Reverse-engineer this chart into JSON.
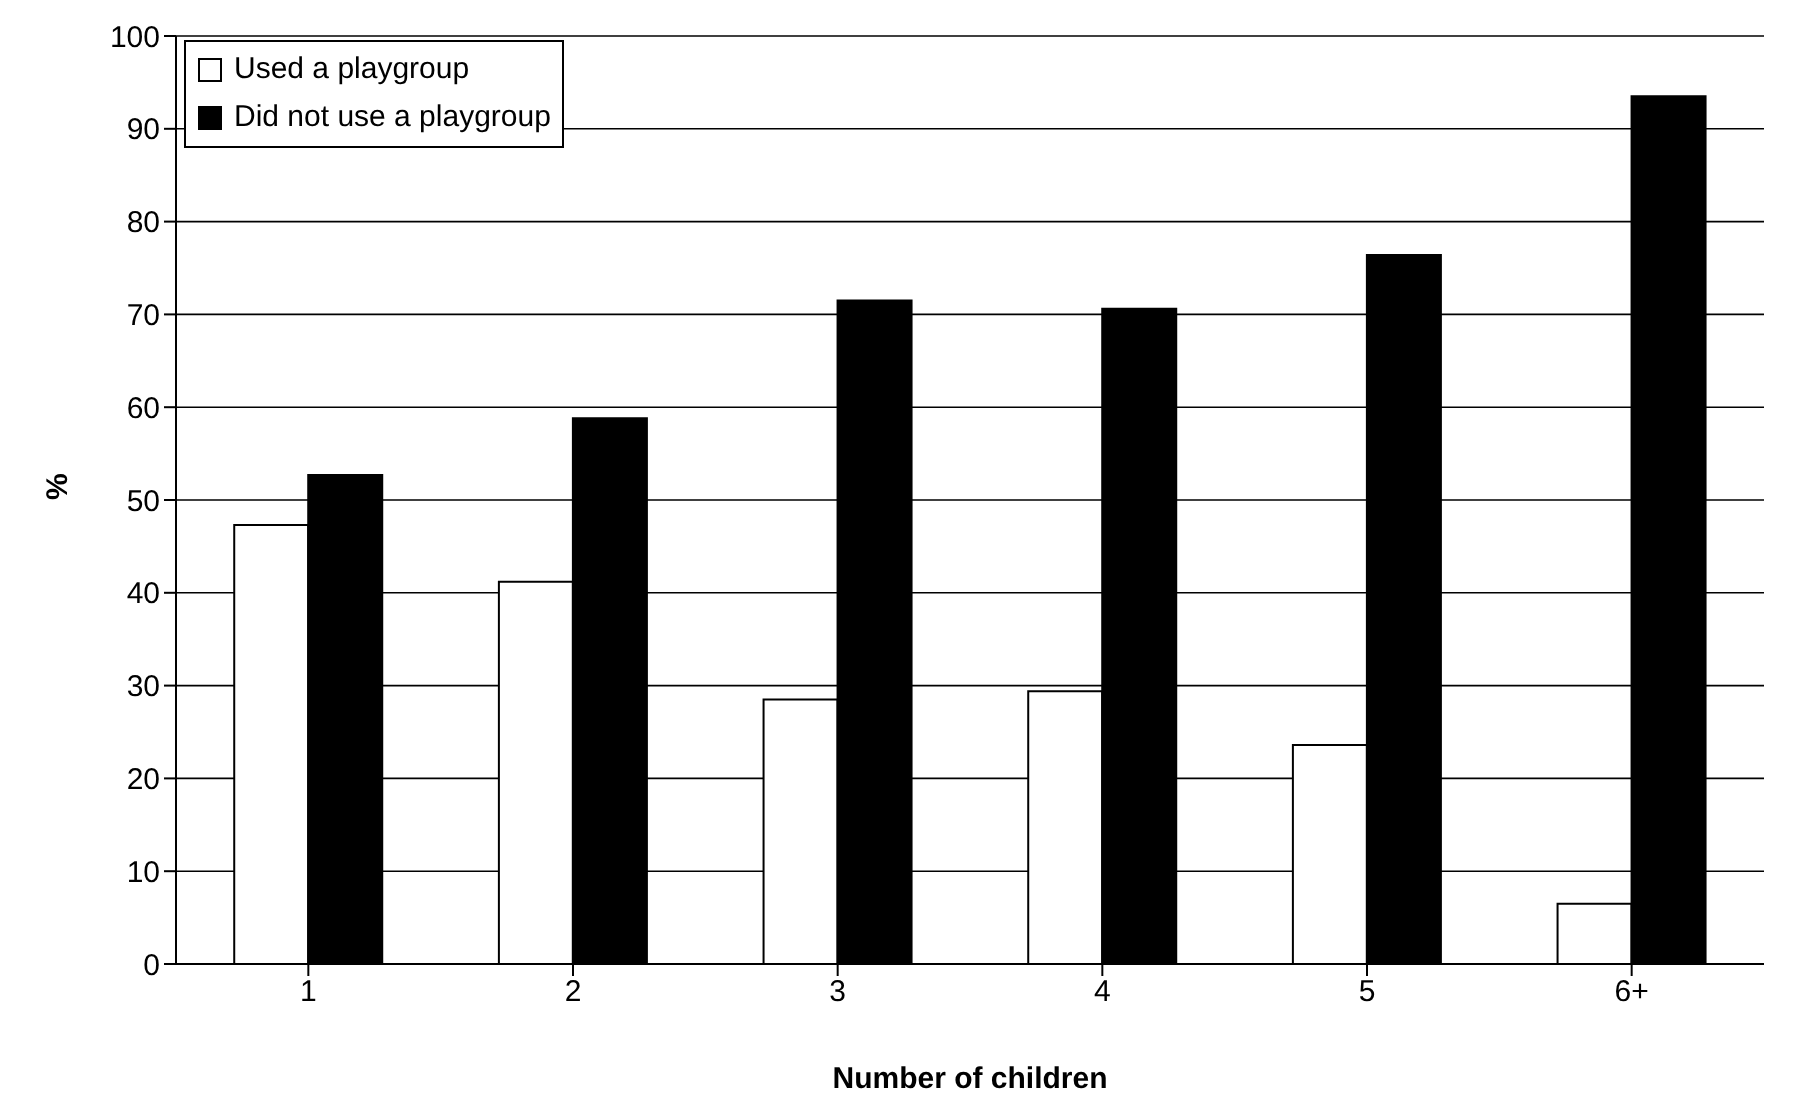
{
  "chart_data": {
    "type": "bar",
    "xlabel": "Number of children",
    "ylabel": "%",
    "categories": [
      "1",
      "2",
      "3",
      "4",
      "5",
      "6+"
    ],
    "series": [
      {
        "name": "Used a playgroup",
        "color": "#ffffff",
        "values": [
          47.3,
          41.2,
          28.5,
          29.4,
          23.6,
          6.5
        ]
      },
      {
        "name": "Did not use a playgroup",
        "color": "#000000",
        "values": [
          52.7,
          58.8,
          71.5,
          70.6,
          76.4,
          93.5
        ]
      }
    ],
    "ylim": [
      0,
      100
    ],
    "yticks": [
      0,
      10,
      20,
      30,
      40,
      50,
      60,
      70,
      80,
      90,
      100
    ],
    "grid": "y",
    "legend": "top left"
  }
}
